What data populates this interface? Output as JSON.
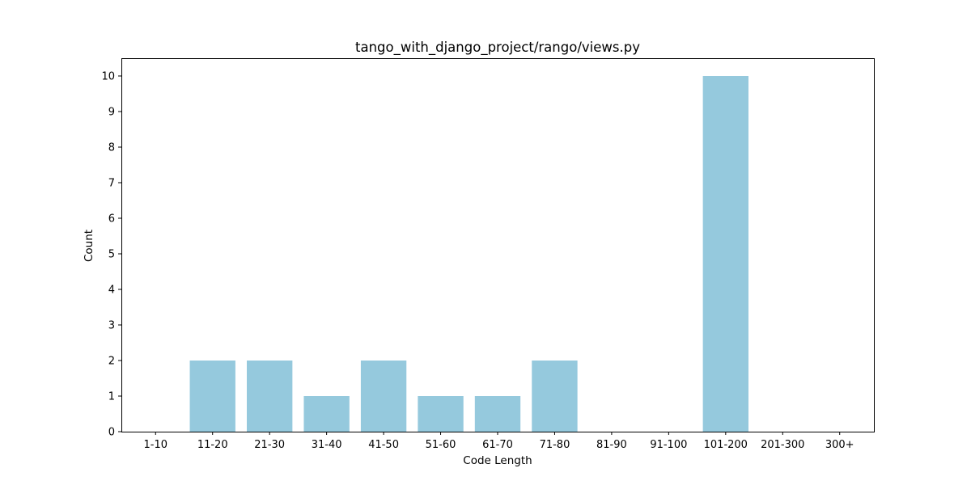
{
  "chart_data": {
    "type": "bar",
    "title": "tango_with_django_project/rango/views.py",
    "xlabel": "Code Length",
    "ylabel": "Count",
    "categories": [
      "1-10",
      "11-20",
      "21-30",
      "31-40",
      "41-50",
      "51-60",
      "61-70",
      "71-80",
      "81-90",
      "91-100",
      "101-200",
      "201-300",
      "300+"
    ],
    "values": [
      0,
      2,
      2,
      1,
      2,
      1,
      1,
      2,
      0,
      0,
      10,
      0,
      0
    ],
    "yticks": [
      "0",
      "1",
      "2",
      "3",
      "4",
      "5",
      "6",
      "7",
      "8",
      "9",
      "10"
    ],
    "ylim": [
      0,
      10.5
    ],
    "bar_color": "#95c9dd",
    "grid": false,
    "legend": "none"
  }
}
